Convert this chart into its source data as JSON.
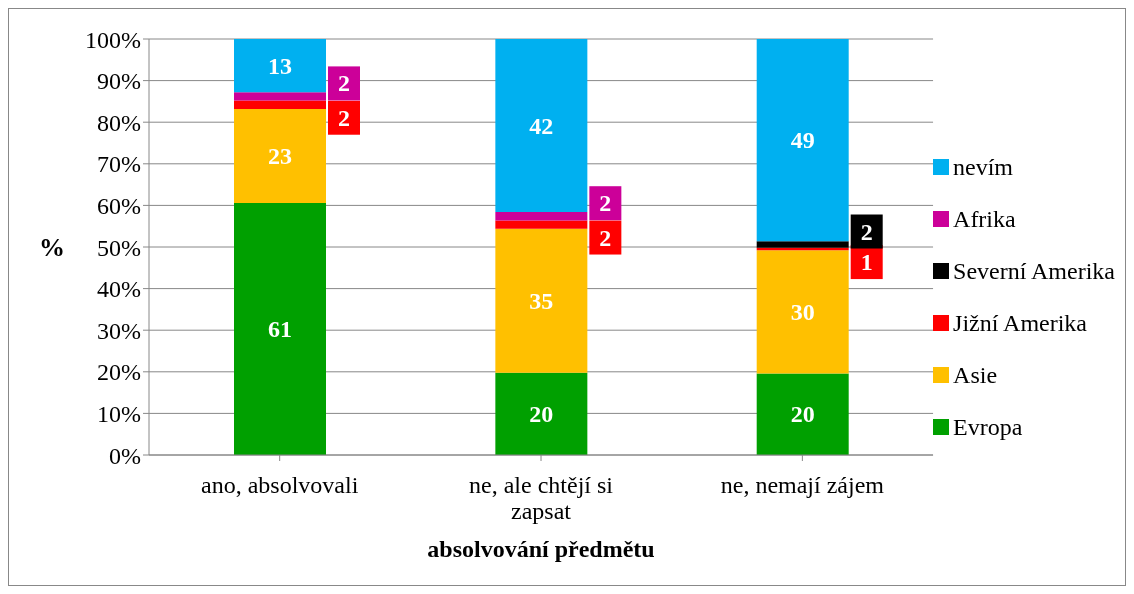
{
  "chart_data": {
    "type": "bar",
    "stacked": true,
    "xlabel": "absolvování předmětu",
    "ylabel": "%",
    "categories": [
      "ano, absolvovali",
      "ne, ale chtějí si zapsat",
      "ne, nemají zájem"
    ],
    "series": [
      {
        "name": "Evropa",
        "color": "#00a000",
        "values": [
          60.6,
          19.8,
          19.6
        ],
        "value_labels": [
          "61",
          "20",
          "20"
        ]
      },
      {
        "name": "Asie",
        "color": "#ffc000",
        "values": [
          22.6,
          34.6,
          29.6
        ],
        "value_labels": [
          "23",
          "35",
          "30"
        ]
      },
      {
        "name": "Jižní Amerika",
        "color": "#ff0000",
        "values": [
          2.0,
          2.0,
          0.6
        ],
        "value_labels": [
          "2",
          "2",
          "1"
        ]
      },
      {
        "name": "Severní Amerika",
        "color": "#000000",
        "values": [
          null,
          null,
          1.6
        ],
        "value_labels": [
          null,
          null,
          "2"
        ]
      },
      {
        "name": "Afrika",
        "color": "#cc0099",
        "values": [
          2.0,
          2.0,
          null
        ],
        "value_labels": [
          "2",
          "2",
          null
        ]
      },
      {
        "name": "nevím",
        "color": "#00b0f0",
        "values": [
          12.8,
          41.6,
          48.6
        ],
        "value_labels": [
          "13",
          "42",
          "49"
        ]
      }
    ],
    "ylim": [
      0,
      100
    ],
    "yticks": [
      {
        "value": 0,
        "label": "0%"
      },
      {
        "value": 10,
        "label": "10%"
      },
      {
        "value": 20,
        "label": "20%"
      },
      {
        "value": 30,
        "label": "30%"
      },
      {
        "value": 40,
        "label": "40%"
      },
      {
        "value": 50,
        "label": "50%"
      },
      {
        "value": 60,
        "label": "60%"
      },
      {
        "value": 70,
        "label": "70%"
      },
      {
        "value": 80,
        "label": "80%"
      },
      {
        "value": 90,
        "label": "90%"
      },
      {
        "value": 100,
        "label": "100%"
      }
    ],
    "grid": "y",
    "legend": "right"
  }
}
